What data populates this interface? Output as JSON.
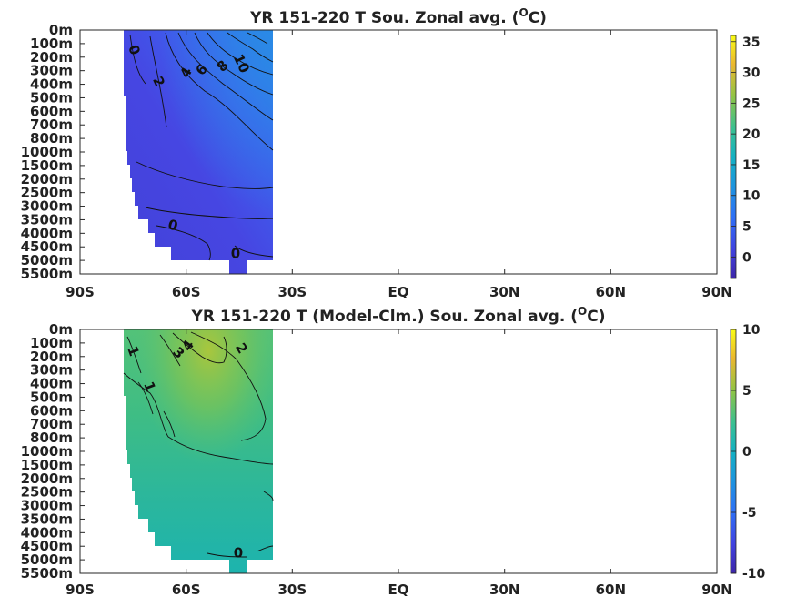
{
  "chart_data": [
    {
      "type": "heatmap",
      "title_main": "YR 151-220 T Sou. Zonal avg. (",
      "title_sup": "O",
      "title_end": "C)",
      "x_ticks": [
        "90S",
        "60S",
        "30S",
        "EQ",
        "30N",
        "60N",
        "90N"
      ],
      "y_ticks": [
        "0m",
        "100m",
        "200m",
        "300m",
        "400m",
        "500m",
        "600m",
        "700m",
        "800m",
        "1000m",
        "1500m",
        "2000m",
        "2500m",
        "3000m",
        "3500m",
        "4000m",
        "4500m",
        "5000m",
        "5500m"
      ],
      "colorbar": {
        "min": -3.5,
        "max": 36,
        "ticks": [
          0,
          5,
          10,
          15,
          20,
          25,
          30,
          35
        ]
      },
      "data_lat_range": [
        "78S",
        "35S"
      ],
      "contour_labels": [
        "0",
        "2",
        "4",
        "6",
        "8",
        "10",
        "0",
        "0"
      ]
    },
    {
      "type": "heatmap",
      "title_main": "YR 151-220 T (Model-Clm.) Sou. Zonal avg. (",
      "title_sup": "O",
      "title_end": "C)",
      "x_ticks": [
        "90S",
        "60S",
        "30S",
        "EQ",
        "30N",
        "60N",
        "90N"
      ],
      "y_ticks": [
        "0m",
        "100m",
        "200m",
        "300m",
        "400m",
        "500m",
        "600m",
        "700m",
        "800m",
        "1000m",
        "1500m",
        "2000m",
        "2500m",
        "3000m",
        "3500m",
        "4000m",
        "4500m",
        "5000m",
        "5500m"
      ],
      "colorbar": {
        "min": -10,
        "max": 10,
        "ticks": [
          -10,
          -5,
          0,
          5,
          10
        ]
      },
      "data_lat_range": [
        "78S",
        "35S"
      ],
      "contour_labels": [
        "1",
        "1",
        "4",
        "3",
        "2",
        "0"
      ]
    }
  ]
}
